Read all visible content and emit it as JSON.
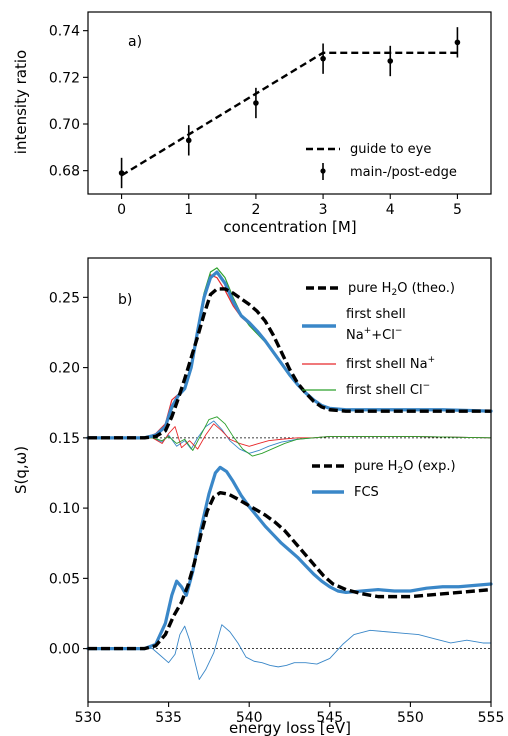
{
  "chart_data": [
    {
      "type": "line",
      "panel_label": "a)",
      "xlabel": "concentration [M]",
      "ylabel": "intensity ratio",
      "xlim": [
        -0.5,
        5.5
      ],
      "ylim": [
        0.67,
        0.748
      ],
      "xticks": [
        0,
        1,
        2,
        3,
        4,
        5
      ],
      "xtick_labels": [
        "0",
        "1",
        "2",
        "3",
        "4",
        "5"
      ],
      "yticks": [
        0.68,
        0.7,
        0.72,
        0.74
      ],
      "ytick_labels": [
        "0.68",
        "0.70",
        "0.72",
        "0.74"
      ],
      "legend_position": "lower-right",
      "series": [
        {
          "name": "main-/post-edge",
          "style": "errorbar",
          "color": "#000000",
          "x": [
            0,
            1,
            2,
            3,
            4,
            5
          ],
          "y": [
            0.679,
            0.693,
            0.709,
            0.728,
            0.727,
            0.735
          ],
          "yerr": [
            0.0065,
            0.0065,
            0.0065,
            0.0065,
            0.0065,
            0.0065
          ]
        },
        {
          "name": "guide to eye",
          "style": "dashed",
          "color": "#000000",
          "x": [
            0,
            3,
            5
          ],
          "y": [
            0.678,
            0.7305,
            0.7305
          ]
        }
      ]
    },
    {
      "type": "line",
      "panel_label": "b)",
      "xlabel": "energy loss [eV]",
      "ylabel": "S(q,ω)",
      "xlim": [
        530,
        555
      ],
      "ylim": [
        -0.038,
        0.278
      ],
      "xticks": [
        530,
        535,
        540,
        545,
        550,
        555
      ],
      "xtick_labels": [
        "530",
        "535",
        "540",
        "545",
        "550",
        "555"
      ],
      "yticks": [
        0.0,
        0.05,
        0.1,
        0.15,
        0.2,
        0.25
      ],
      "ytick_labels": [
        "0.00",
        "0.05",
        "0.10",
        "0.15",
        "0.20",
        "0.25"
      ],
      "reference_lines": [
        0.0,
        0.15
      ],
      "legend_upper_position": "upper-right",
      "legend_lower_position": "middle-right",
      "series": [
        {
          "name": "pure H₂O (theo.)",
          "legend_main": "pure H",
          "legend_sub": "2",
          "legend_rest": "O (theo.)",
          "style": "dashed-thick",
          "color": "#000000",
          "x": [
            530,
            533.5,
            534.2,
            534.8,
            535.2,
            535.6,
            536.0,
            536.4,
            536.8,
            537.2,
            537.6,
            538.0,
            538.5,
            539.0,
            539.5,
            540.0,
            540.5,
            541.0,
            541.5,
            542.0,
            542.5,
            543.0,
            543.5,
            544.0,
            544.5,
            545.0,
            546.0,
            548.0,
            550.0,
            552.0,
            555.0
          ],
          "y": [
            0.15,
            0.15,
            0.151,
            0.155,
            0.165,
            0.178,
            0.192,
            0.207,
            0.222,
            0.238,
            0.252,
            0.256,
            0.256,
            0.253,
            0.249,
            0.245,
            0.24,
            0.233,
            0.223,
            0.211,
            0.199,
            0.189,
            0.182,
            0.176,
            0.172,
            0.17,
            0.169,
            0.169,
            0.169,
            0.169,
            0.169
          ]
        },
        {
          "name": "first shell Na⁺+Cl⁻",
          "legend_line1": "first shell",
          "legend_line2_a": "Na",
          "legend_line2_sup1": "+",
          "legend_line2_b": "+Cl",
          "legend_line2_sup2": "−",
          "style": "solid-thick",
          "color": "#3a87c8",
          "x": [
            530,
            533.5,
            534.2,
            534.8,
            535.2,
            535.6,
            536.0,
            536.4,
            536.8,
            537.2,
            537.6,
            538.0,
            538.5,
            539.0,
            539.5,
            540.0,
            540.5,
            541.0,
            541.5,
            542.0,
            542.5,
            543.0,
            543.5,
            544.0,
            544.5,
            545.0,
            546.0,
            548.0,
            550.0,
            552.0,
            555.0
          ],
          "y": [
            0.15,
            0.15,
            0.152,
            0.158,
            0.172,
            0.18,
            0.185,
            0.2,
            0.226,
            0.25,
            0.264,
            0.268,
            0.26,
            0.247,
            0.237,
            0.232,
            0.226,
            0.219,
            0.211,
            0.203,
            0.195,
            0.188,
            0.182,
            0.177,
            0.173,
            0.171,
            0.17,
            0.17,
            0.17,
            0.17,
            0.169
          ]
        },
        {
          "name": "first shell Na⁺",
          "legend_main": "first shell Na",
          "legend_sup": "+",
          "style": "solid-thin",
          "color": "#e8282a",
          "x": [
            530,
            533.5,
            534.2,
            534.8,
            535.2,
            535.6,
            536.0,
            536.4,
            536.8,
            537.2,
            537.6,
            538.0,
            538.5,
            539.0,
            539.5,
            540.0,
            540.5,
            541.0,
            541.5,
            542.0,
            542.5,
            543.0,
            543.5,
            544.0,
            544.5,
            545.0,
            546.0,
            548.0,
            550.0,
            552.0,
            555.0
          ],
          "y": [
            0.15,
            0.15,
            0.153,
            0.16,
            0.177,
            0.181,
            0.186,
            0.199,
            0.224,
            0.251,
            0.266,
            0.264,
            0.255,
            0.244,
            0.236,
            0.231,
            0.225,
            0.219,
            0.211,
            0.203,
            0.195,
            0.188,
            0.182,
            0.177,
            0.173,
            0.171,
            0.17,
            0.17,
            0.17,
            0.17,
            0.169
          ]
        },
        {
          "name": "first shell Cl⁻",
          "legend_main": "first shell Cl",
          "legend_sup": "−",
          "style": "solid-thin",
          "color": "#2ca02c",
          "x": [
            530,
            533.5,
            534.2,
            534.8,
            535.2,
            535.6,
            536.0,
            536.4,
            536.8,
            537.2,
            537.6,
            538.0,
            538.5,
            539.0,
            539.5,
            540.0,
            540.5,
            541.0,
            541.5,
            542.0,
            542.5,
            543.0,
            543.5,
            544.0,
            544.5,
            545.0,
            546.0,
            548.0,
            550.0,
            552.0,
            555.0
          ],
          "y": [
            0.15,
            0.15,
            0.152,
            0.157,
            0.17,
            0.179,
            0.185,
            0.201,
            0.228,
            0.253,
            0.268,
            0.271,
            0.264,
            0.25,
            0.238,
            0.23,
            0.224,
            0.218,
            0.21,
            0.202,
            0.194,
            0.188,
            0.182,
            0.177,
            0.173,
            0.171,
            0.17,
            0.17,
            0.17,
            0.17,
            0.169
          ]
        },
        {
          "name": "difference first shell Na⁺+Cl⁻",
          "style": "solid-hair",
          "color": "#3a87c8",
          "x": [
            530,
            534.0,
            534.6,
            535.0,
            535.5,
            536.0,
            536.4,
            536.8,
            537.3,
            537.8,
            538.3,
            538.8,
            539.4,
            540.0,
            540.6,
            541.2,
            542.0,
            543.0,
            544.0,
            545.0,
            547.0,
            550.0,
            555.0
          ],
          "y": [
            0.15,
            0.15,
            0.147,
            0.152,
            0.144,
            0.148,
            0.142,
            0.15,
            0.158,
            0.162,
            0.156,
            0.148,
            0.142,
            0.139,
            0.141,
            0.144,
            0.147,
            0.149,
            0.15,
            0.151,
            0.151,
            0.151,
            0.15
          ]
        },
        {
          "name": "difference first shell Na⁺",
          "style": "solid-hair",
          "color": "#e8282a",
          "x": [
            530,
            534.0,
            534.6,
            535.0,
            535.4,
            535.8,
            536.3,
            536.8,
            537.3,
            537.8,
            538.3,
            538.8,
            539.4,
            540.0,
            540.6,
            541.2,
            542.0,
            543.0,
            544.0,
            545.0,
            547.0,
            550.0,
            555.0
          ],
          "y": [
            0.15,
            0.15,
            0.146,
            0.153,
            0.158,
            0.143,
            0.148,
            0.142,
            0.152,
            0.16,
            0.155,
            0.149,
            0.146,
            0.144,
            0.146,
            0.148,
            0.149,
            0.15,
            0.15,
            0.151,
            0.151,
            0.151,
            0.15
          ]
        },
        {
          "name": "difference first shell Cl⁻",
          "style": "solid-hair",
          "color": "#2ca02c",
          "x": [
            530,
            534.0,
            534.6,
            535.0,
            535.5,
            536.0,
            536.5,
            537.0,
            537.5,
            538.0,
            538.5,
            539.0,
            539.6,
            540.2,
            540.8,
            541.4,
            542.2,
            543.0,
            544.0,
            545.0,
            547.0,
            550.0,
            555.0
          ],
          "y": [
            0.15,
            0.15,
            0.148,
            0.151,
            0.146,
            0.149,
            0.141,
            0.152,
            0.163,
            0.165,
            0.16,
            0.151,
            0.142,
            0.137,
            0.139,
            0.142,
            0.146,
            0.149,
            0.15,
            0.151,
            0.151,
            0.151,
            0.15
          ]
        },
        {
          "name": "pure H₂O (exp.)",
          "legend_main": "pure H",
          "legend_sub": "2",
          "legend_rest": "O (exp.)",
          "style": "dashed-thick",
          "color": "#000000",
          "x": [
            530,
            533.5,
            534.2,
            534.8,
            535.3,
            535.8,
            536.2,
            536.6,
            537.0,
            537.4,
            537.8,
            538.2,
            538.7,
            539.2,
            539.8,
            540.4,
            541.0,
            541.6,
            542.2,
            542.8,
            543.4,
            544.0,
            544.6,
            545.2,
            546.0,
            547.0,
            548.0,
            549.0,
            550.0,
            551.0,
            552.0,
            553.0,
            554.0,
            555.0
          ],
          "y": [
            0.0,
            0.0,
            0.002,
            0.01,
            0.023,
            0.033,
            0.045,
            0.061,
            0.081,
            0.098,
            0.108,
            0.111,
            0.11,
            0.107,
            0.103,
            0.099,
            0.095,
            0.09,
            0.084,
            0.076,
            0.068,
            0.06,
            0.052,
            0.046,
            0.042,
            0.039,
            0.037,
            0.037,
            0.037,
            0.038,
            0.039,
            0.04,
            0.041,
            0.042
          ]
        },
        {
          "name": "FCS",
          "style": "solid-thick",
          "color": "#3a87c8",
          "x": [
            530,
            533.5,
            534.2,
            534.8,
            535.2,
            535.5,
            535.8,
            536.1,
            536.5,
            537.0,
            537.5,
            537.9,
            538.2,
            538.6,
            539.0,
            539.5,
            540.0,
            540.5,
            541.0,
            541.5,
            542.0,
            542.5,
            543.0,
            543.5,
            544.0,
            544.5,
            545.0,
            545.5,
            546.0,
            547.0,
            548.0,
            549.0,
            550.0,
            551.0,
            552.0,
            553.0,
            554.0,
            555.0
          ],
          "y": [
            0.0,
            0.0,
            0.003,
            0.018,
            0.038,
            0.048,
            0.044,
            0.038,
            0.055,
            0.085,
            0.11,
            0.125,
            0.129,
            0.126,
            0.119,
            0.109,
            0.101,
            0.094,
            0.087,
            0.081,
            0.075,
            0.07,
            0.065,
            0.059,
            0.053,
            0.048,
            0.044,
            0.041,
            0.04,
            0.041,
            0.042,
            0.041,
            0.041,
            0.043,
            0.044,
            0.044,
            0.045,
            0.046
          ]
        },
        {
          "name": "difference FCS",
          "style": "solid-hair",
          "color": "#3a87c8",
          "x": [
            530,
            534.0,
            534.5,
            535.0,
            535.4,
            535.7,
            536.0,
            536.3,
            536.6,
            536.9,
            537.3,
            537.8,
            538.3,
            538.8,
            539.3,
            539.8,
            540.3,
            540.8,
            541.3,
            541.8,
            542.3,
            542.8,
            543.5,
            544.2,
            545.0,
            545.8,
            546.5,
            547.5,
            548.5,
            549.5,
            550.5,
            551.5,
            552.5,
            553.5,
            554.5,
            555.0
          ],
          "y": [
            0.0,
            0.0,
            -0.005,
            -0.01,
            -0.004,
            0.01,
            0.016,
            0.006,
            -0.008,
            -0.022,
            -0.015,
            -0.003,
            0.017,
            0.012,
            0.004,
            -0.006,
            -0.009,
            -0.01,
            -0.012,
            -0.013,
            -0.012,
            -0.01,
            -0.01,
            -0.011,
            -0.007,
            0.003,
            0.01,
            0.013,
            0.012,
            0.011,
            0.01,
            0.007,
            0.004,
            0.006,
            0.004,
            0.004
          ]
        }
      ]
    }
  ]
}
